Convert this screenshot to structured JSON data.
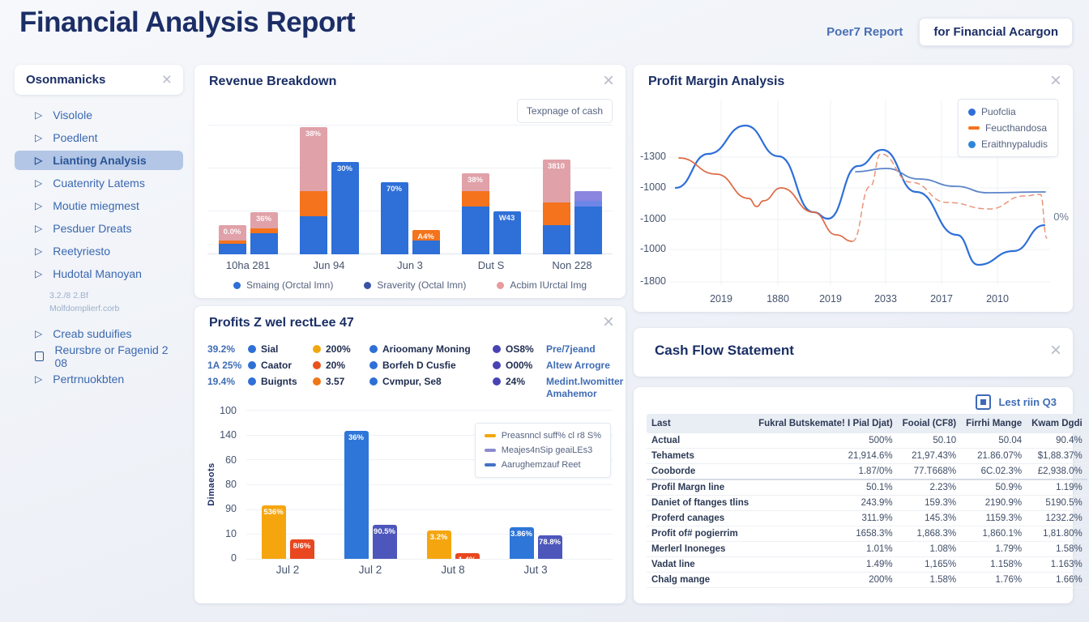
{
  "header": {
    "title": "Financial Analysis Report",
    "link_label": "Poer7 Report",
    "button_label": "for Financial Acargon"
  },
  "sidebar": {
    "title": "Osonmanicks",
    "items_top": [
      {
        "label": "Visolole",
        "icon": "triangle",
        "active": false
      },
      {
        "label": "Poedlent",
        "icon": "triangle",
        "active": false
      },
      {
        "label": "Lianting Analysis",
        "icon": "triangle",
        "active": true
      },
      {
        "label": "Cuatenrity Latems",
        "icon": "triangle",
        "active": false
      },
      {
        "label": "Moutie miegmest",
        "icon": "triangle",
        "active": false
      },
      {
        "label": "Pesduer Dreats",
        "icon": "triangle",
        "active": false
      },
      {
        "label": "Reetyriesto",
        "icon": "triangle",
        "active": false
      },
      {
        "label": "Hudotal Manoyan",
        "icon": "triangle",
        "active": false
      }
    ],
    "note_line1": "3.2./8 2.Bf",
    "note_line2": "Molfdomplierf.corb",
    "items_bottom": [
      {
        "label": "Creab suduifies",
        "icon": "triangle",
        "active": false
      },
      {
        "label": "Reursbre or Fagenid 2 08",
        "icon": "square",
        "active": false
      },
      {
        "label": "Pertrnuokbten",
        "icon": "triangle",
        "active": false
      }
    ]
  },
  "icons": {
    "close": "×",
    "triangle": "▷"
  },
  "colors": {
    "navy": "#1c2e66",
    "link_blue": "#4a6fb5",
    "active_item_bg": "#b3c6e6",
    "chart_blue": "#2e6fd8",
    "chart_dark_blue": "#3953a4",
    "chart_orange": "#f4731c",
    "chart_pink": "#e0a1a9",
    "chart_yellow": "#f5a60f",
    "chart_red": "#e8471f",
    "chart_indigo": "#4d56bb",
    "chart_purple": "#8b86e0"
  },
  "chart_data": [
    {
      "id": "revenue",
      "type": "bar",
      "title": "Revenue Breakdown",
      "badge": "Texpnage of cash",
      "categories": [
        "10ha 281",
        "Jun 94",
        "Jun 3",
        "Dut S",
        "Non 228"
      ],
      "legend": [
        {
          "label": "Smaing (Orctal Imn)",
          "color": "#2e6fd8"
        },
        {
          "label": "Sraverity (Octal Imn)",
          "color": "#3953a4"
        },
        {
          "label": "Acbim IUrctal Img",
          "color": "#e89a9e"
        }
      ],
      "ylim": [
        0,
        100
      ],
      "grid": true,
      "groups": [
        {
          "category": "10ha 281",
          "bars": [
            {
              "label": "0.0%",
              "segments": [
                {
                  "color": "#2e6fd8",
                  "pct": 6
                },
                {
                  "color": "#f4731c",
                  "pct": 2
                },
                {
                  "color": "#e0a1a9",
                  "pct": 9
                }
              ]
            },
            {
              "label": "36%",
              "segments": [
                {
                  "color": "#2e6fd8",
                  "pct": 12.5
                },
                {
                  "color": "#f4731c",
                  "pct": 2.5
                },
                {
                  "color": "#e0a1a9",
                  "pct": 9.5
                }
              ]
            }
          ]
        },
        {
          "category": "Jun 94",
          "bars": [
            {
              "label": "38%",
              "segments": [
                {
                  "color": "#2e6fd8",
                  "pct": 22
                },
                {
                  "color": "#f4731c",
                  "pct": 15
                },
                {
                  "color": "#e0a1a9",
                  "pct": 37
                }
              ]
            },
            {
              "label": "30%",
              "segments": [
                {
                  "color": "#2e6fd8",
                  "pct": 54
                }
              ]
            }
          ]
        },
        {
          "category": "Jun 3",
          "bars": [
            {
              "label": "70%",
              "segments": [
                {
                  "color": "#2e6fd8",
                  "pct": 42
                }
              ]
            },
            {
              "label": "A4%",
              "segments": [
                {
                  "color": "#2e6fd8",
                  "pct": 8
                },
                {
                  "color": "#f4731c",
                  "pct": 6
                }
              ]
            }
          ]
        },
        {
          "category": "Dut S",
          "bars": [
            {
              "label": "38%",
              "segments": [
                {
                  "color": "#2e6fd8",
                  "pct": 28
                },
                {
                  "color": "#f4731c",
                  "pct": 9
                },
                {
                  "color": "#e0a1a9",
                  "pct": 10
                }
              ]
            },
            {
              "label": "W43",
              "segments": [
                {
                  "color": "#2e6fd8",
                  "pct": 25
                }
              ]
            }
          ]
        },
        {
          "category": "Non 228",
          "bars": [
            {
              "label": "3810",
              "segments": [
                {
                  "color": "#2e6fd8",
                  "pct": 17
                },
                {
                  "color": "#f4731c",
                  "pct": 13
                },
                {
                  "color": "#e0a1a9",
                  "pct": 25
                }
              ]
            },
            {
              "label": "",
              "segments": [
                {
                  "color": "#2e6fd8",
                  "pct": 28
                },
                {
                  "color": "#6e86e8",
                  "pct": 3
                },
                {
                  "color": "#8b86e0",
                  "pct": 6
                }
              ]
            }
          ]
        }
      ]
    },
    {
      "id": "profit_margin",
      "type": "line",
      "title": "Profit Margin Analysis",
      "legend": [
        {
          "label": "Puofclia",
          "color": "#2e6fd8",
          "marker": "dot"
        },
        {
          "label": "Feucthandosa",
          "color": "#f4731c",
          "marker": "dash"
        },
        {
          "label": "Eraithnypaludis",
          "color": "#2e86d8",
          "marker": "dot"
        }
      ],
      "y_ticks": [
        "-1300",
        "-1000",
        "-1000",
        "-1000",
        "-1800"
      ],
      "x_ticks": [
        "2019",
        "1880",
        "2019",
        "2033",
        "2017",
        "2010"
      ],
      "annotation": "0%",
      "grid": true,
      "series": [
        {
          "name": "blue-main",
          "color": "#2e6fd8",
          "dashed": false,
          "width": 2.2,
          "points": [
            [
              8,
              116
            ],
            [
              48,
              74
            ],
            [
              94,
              39
            ],
            [
              135,
              77
            ],
            [
              178,
              146
            ],
            [
              196,
              154
            ],
            [
              233,
              89
            ],
            [
              263,
              69
            ],
            [
              305,
              121
            ],
            [
              355,
              174
            ],
            [
              381,
              211
            ],
            [
              425,
              194
            ],
            [
              463,
              162
            ]
          ]
        },
        {
          "name": "blue-secondary",
          "color": "#5b85c9",
          "dashed": false,
          "width": 1.8,
          "points": [
            [
              230,
              96
            ],
            [
              268,
              92
            ],
            [
              308,
              105
            ],
            [
              353,
              114
            ],
            [
              393,
              122
            ],
            [
              464,
              121
            ]
          ]
        },
        {
          "name": "orange-solid",
          "color": "#dd6a45",
          "dashed": false,
          "width": 1.7,
          "points": [
            [
              12,
              79
            ],
            [
              58,
              99
            ],
            [
              98,
              129
            ],
            [
              108,
              139
            ],
            [
              116,
              132
            ],
            [
              138,
              116
            ],
            [
              178,
              146
            ],
            [
              206,
              174
            ],
            [
              226,
              182
            ]
          ]
        },
        {
          "name": "orange-dashed",
          "color": "#e8957a",
          "dashed": true,
          "width": 1.5,
          "points": [
            [
              226,
              182
            ],
            [
              248,
              114
            ],
            [
              261,
              74
            ],
            [
              298,
              109
            ],
            [
              343,
              134
            ],
            [
              395,
              142
            ],
            [
              438,
              126
            ],
            [
              458,
              124
            ],
            [
              466,
              178
            ]
          ]
        }
      ]
    },
    {
      "id": "profits",
      "type": "bar",
      "title": "Profits Z wel rectLee 47",
      "stats": [
        {
          "pct": "39.2%",
          "d1_color": "#2e6fd8",
          "d1": "Sial",
          "d2_color": "#f0a70e",
          "d2": "200%",
          "d3_color": "#2e6fd8",
          "d3": "Arioomany Moning",
          "d4_color": "#4843b5",
          "d4": "OS8%",
          "right": "Pre/7jeand"
        },
        {
          "pct": "1A 25%",
          "d1_color": "#2e6fd8",
          "d1": "Caator",
          "d2_color": "#e8531c",
          "d2": "20%",
          "d3_color": "#2e6fd8",
          "d3": "Borfeh D Cusfie",
          "d4_color": "#4843b5",
          "d4": "O00%",
          "right": "Altew Arrogre"
        },
        {
          "pct": "19.4%",
          "d1_color": "#2e6fd8",
          "d1": "Buignts",
          "d2_color": "#f07716",
          "d2": "3.57",
          "d3_color": "#2e6fd8",
          "d3": "Cvmpur, Se8",
          "d4_color": "#4843b5",
          "d4": "24%",
          "right": "Medint.lwomitter Amahemor"
        }
      ],
      "y_ticks": [
        "100",
        "140",
        "60",
        "80",
        "90",
        "10",
        "0"
      ],
      "y_axis_label": "Dimaeots",
      "categories": [
        "Jul 2",
        "Jul 2",
        "Jut 8",
        "Jut 3"
      ],
      "legend": [
        {
          "label": "Preasnncl suff% cl r8 S%",
          "color": "#f0a70e"
        },
        {
          "label": "Meajes4nSip geaiLEs3",
          "color": "#8b8bd0"
        },
        {
          "label": "Aarughemzauf Reet",
          "color": "#4472c4"
        }
      ],
      "groups": [
        {
          "category": "Jul 2",
          "bars": [
            {
              "color": "#f5a60f",
              "pct": 36,
              "label": "536%"
            },
            {
              "color": "#e8471f",
              "pct": 13,
              "label": "8/6%"
            }
          ]
        },
        {
          "category": "Jul 2",
          "bars": [
            {
              "color": "#2e76d8",
              "pct": 86,
              "label": "36%"
            },
            {
              "color": "#4d56bb",
              "pct": 23,
              "label": "90.5%"
            }
          ]
        },
        {
          "category": "Jut 8",
          "bars": [
            {
              "color": "#f5a60f",
              "pct": 19,
              "label": "3.2%"
            },
            {
              "color": "#e8471f",
              "pct": 4,
              "label": "1.4%"
            }
          ]
        },
        {
          "category": "Jut 3",
          "bars": [
            {
              "color": "#2e76d8",
              "pct": 21,
              "label": "3.86%"
            },
            {
              "color": "#4d56bb",
              "pct": 16,
              "label": "78.8%"
            }
          ]
        }
      ]
    },
    {
      "id": "cash_flow",
      "type": "table",
      "title": "Cash Flow Statement",
      "corner_label": "Lest riin Q3",
      "columns": [
        "Last",
        "Fukral Butskemate! I Pial Djat)",
        "Fooial (CF8)",
        "Firrhi Mange",
        "Kwam Dgdi"
      ],
      "rows": [
        [
          "Actual",
          "500%",
          "50.10",
          "50.04",
          "90.4%"
        ],
        [
          "Tehamets",
          "21,914.6%",
          "21,97.43%",
          "21.86.07%",
          "$1,88.37%"
        ],
        [
          "Cooborde",
          "1.87/0%",
          "77.T668%",
          "6C.02.3%",
          "£2,938.0%"
        ],
        [
          "Profil Margn line",
          "50.1%",
          "2.23%",
          "50.9%",
          "1.19%"
        ],
        [
          "Daniet of ftanges tlins",
          "243.9%",
          "159.3%",
          "2190.9%",
          "5190.5%"
        ],
        [
          "Proferd canages",
          "311.9%",
          "145.3%",
          "1159.3%",
          "1232.2%"
        ],
        [
          "Profit of# pogierrim",
          "1658.3%",
          "1,868.3%",
          "1,860.1%",
          "1,81.80%"
        ],
        [
          "Merlerl Inoneges",
          "1.01%",
          "1.08%",
          "1.79%",
          "1.58%"
        ],
        [
          "Vadat line",
          "1.49%",
          "1,165%",
          "1.158%",
          "1.163%"
        ],
        [
          "Chalg mange",
          "200%",
          "1.58%",
          "1.76%",
          "1.66%"
        ]
      ]
    }
  ]
}
